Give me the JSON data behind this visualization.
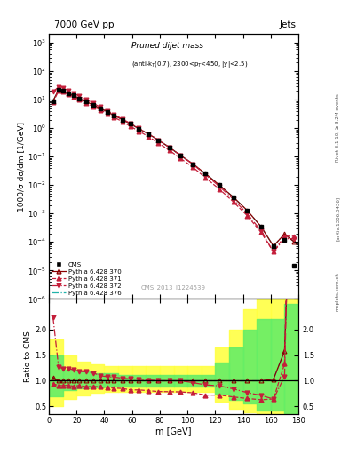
{
  "header_left": "7000 GeV pp",
  "header_right": "Jets",
  "ylabel_main": "1000/σ dσ/dm [1/GeV]",
  "ylabel_ratio": "Ratio to CMS",
  "xlabel": "m [GeV]",
  "watermark": "CMS_2013_I1224539",
  "right_label": "Rivet 3.1.10, ≥ 3.2M events",
  "arxiv": "[arXiv:1306.3436]",
  "mcplots": "mcplots.cern.ch",
  "cms_x": [
    3,
    7,
    10,
    14,
    18,
    22,
    27,
    32,
    37,
    42,
    47,
    53,
    59,
    65,
    72,
    79,
    87,
    95,
    104,
    113,
    123,
    133,
    143,
    153,
    162,
    170,
    177
  ],
  "cms_y": [
    8.5,
    22,
    21,
    17,
    14,
    11,
    8.5,
    6.5,
    5.0,
    3.8,
    2.8,
    2.0,
    1.4,
    0.95,
    0.62,
    0.38,
    0.21,
    0.11,
    0.055,
    0.025,
    0.01,
    0.0038,
    0.0013,
    0.00035,
    7e-05,
    0.00012,
    1.5e-05
  ],
  "cms_yerr_lo": [
    0.3,
    0.5,
    0.5,
    0.4,
    0.3,
    0.25,
    0.2,
    0.15,
    0.12,
    0.09,
    0.07,
    0.05,
    0.035,
    0.025,
    0.016,
    0.01,
    0.006,
    0.003,
    0.0015,
    0.0007,
    0.0003,
    0.0001,
    3.5e-05,
    1e-05,
    2e-06,
    3e-06,
    5e-07
  ],
  "cms_yerr_hi": [
    0.3,
    0.5,
    0.5,
    0.4,
    0.3,
    0.25,
    0.2,
    0.15,
    0.12,
    0.09,
    0.07,
    0.05,
    0.035,
    0.025,
    0.016,
    0.01,
    0.006,
    0.003,
    0.0015,
    0.0007,
    0.0003,
    0.0001,
    3.5e-05,
    1e-05,
    2e-06,
    3e-06,
    5e-07
  ],
  "p370_x": [
    3,
    7,
    10,
    14,
    18,
    22,
    27,
    32,
    37,
    42,
    47,
    53,
    59,
    65,
    72,
    79,
    87,
    95,
    104,
    113,
    123,
    133,
    143,
    153,
    162,
    170,
    177
  ],
  "p370_y": [
    9.0,
    22,
    21,
    17,
    14,
    11,
    8.5,
    6.5,
    5.0,
    3.8,
    2.8,
    2.0,
    1.4,
    0.95,
    0.62,
    0.38,
    0.21,
    0.11,
    0.055,
    0.025,
    0.01,
    0.0038,
    0.0013,
    0.00035,
    7.2e-05,
    0.00019,
    0.0001
  ],
  "p371_x": [
    3,
    7,
    10,
    14,
    18,
    22,
    27,
    32,
    37,
    42,
    47,
    53,
    59,
    65,
    72,
    79,
    87,
    95,
    104,
    113,
    123,
    133,
    143,
    153,
    162,
    170,
    177
  ],
  "p371_y": [
    8.0,
    20,
    19,
    15.5,
    12.5,
    10,
    7.5,
    5.8,
    4.4,
    3.3,
    2.4,
    1.7,
    1.15,
    0.78,
    0.5,
    0.3,
    0.165,
    0.086,
    0.042,
    0.018,
    0.0072,
    0.0026,
    0.00085,
    0.00022,
    4.5e-05,
    0.00016,
    0.00016
  ],
  "p372_x": [
    3,
    7,
    10,
    14,
    18,
    22,
    27,
    32,
    37,
    42,
    47,
    53,
    59,
    65,
    72,
    79,
    87,
    95,
    104,
    113,
    123,
    133,
    143,
    153,
    162,
    170,
    177
  ],
  "p372_y": [
    19,
    28,
    26,
    21,
    17,
    13,
    10,
    7.5,
    5.5,
    4.1,
    3.0,
    2.1,
    1.45,
    0.98,
    0.63,
    0.38,
    0.21,
    0.11,
    0.053,
    0.023,
    0.009,
    0.0032,
    0.001,
    0.00025,
    4.5e-05,
    0.00013,
    0.00013
  ],
  "p376_x": [
    3,
    7,
    10,
    14,
    18,
    22,
    27,
    32,
    37,
    42,
    47,
    53,
    59,
    65,
    72,
    79,
    87,
    95,
    104,
    113,
    123,
    133,
    143,
    153,
    162,
    170,
    177
  ],
  "p376_y": [
    9.0,
    22,
    21,
    17,
    14,
    11,
    8.5,
    6.5,
    5.0,
    3.8,
    2.8,
    2.0,
    1.4,
    0.95,
    0.62,
    0.38,
    0.21,
    0.11,
    0.055,
    0.025,
    0.01,
    0.0038,
    0.0013,
    0.00035,
    7.2e-05,
    0.00019,
    0.0001
  ],
  "ratio370_y": [
    1.06,
    1.0,
    1.0,
    1.0,
    1.0,
    1.0,
    1.0,
    1.0,
    1.0,
    1.0,
    1.0,
    1.0,
    1.0,
    1.0,
    1.0,
    1.0,
    1.0,
    1.0,
    1.0,
    1.0,
    1.0,
    1.0,
    1.0,
    1.0,
    1.03,
    1.58,
    6.7
  ],
  "ratio371_y": [
    0.94,
    0.91,
    0.905,
    0.912,
    0.893,
    0.909,
    0.882,
    0.892,
    0.88,
    0.868,
    0.857,
    0.85,
    0.821,
    0.821,
    0.806,
    0.789,
    0.786,
    0.782,
    0.764,
    0.72,
    0.72,
    0.684,
    0.654,
    0.629,
    0.643,
    1.33,
    10.7
  ],
  "ratio372_y": [
    2.24,
    1.27,
    1.238,
    1.235,
    1.214,
    1.182,
    1.176,
    1.154,
    1.1,
    1.079,
    1.071,
    1.05,
    1.036,
    1.032,
    1.016,
    1.0,
    1.0,
    1.0,
    0.964,
    0.92,
    0.9,
    0.842,
    0.769,
    0.714,
    0.643,
    1.083,
    8.7
  ],
  "ratio376_y": [
    1.06,
    1.0,
    1.0,
    1.0,
    1.0,
    1.0,
    1.0,
    1.0,
    1.0,
    1.0,
    1.0,
    1.0,
    1.0,
    1.0,
    1.0,
    1.0,
    1.0,
    1.0,
    1.0,
    1.0,
    1.0,
    1.0,
    1.0,
    1.0,
    1.03,
    1.58,
    6.7
  ],
  "band_edges": [
    0,
    10,
    20,
    30,
    40,
    50,
    60,
    70,
    80,
    90,
    100,
    110,
    120,
    130,
    140,
    150,
    160,
    170,
    180
  ],
  "band_green_lo": [
    0.7,
    0.82,
    0.86,
    0.87,
    0.88,
    0.88,
    0.88,
    0.88,
    0.88,
    0.88,
    0.88,
    0.88,
    0.75,
    0.62,
    0.55,
    0.42,
    0.42,
    0.35,
    0.35
  ],
  "band_green_hi": [
    1.5,
    1.22,
    1.18,
    1.15,
    1.14,
    1.12,
    1.12,
    1.12,
    1.12,
    1.12,
    1.12,
    1.12,
    1.35,
    1.65,
    2.0,
    2.2,
    2.2,
    2.5,
    2.5
  ],
  "band_yellow_lo": [
    0.5,
    0.65,
    0.72,
    0.76,
    0.78,
    0.78,
    0.78,
    0.78,
    0.78,
    0.78,
    0.78,
    0.78,
    0.6,
    0.45,
    0.38,
    0.28,
    0.28,
    0.22,
    0.22
  ],
  "band_yellow_hi": [
    1.8,
    1.5,
    1.38,
    1.32,
    1.28,
    1.28,
    1.28,
    1.28,
    1.28,
    1.28,
    1.28,
    1.28,
    1.65,
    2.0,
    2.4,
    2.8,
    2.8,
    3.0,
    3.0
  ],
  "color_370": "#8B0000",
  "color_371": "#C41E3A",
  "color_372": "#C41E3A",
  "color_376": "#20B2AA",
  "ylim_main": [
    1e-06,
    2000
  ],
  "ylim_ratio": [
    0.35,
    2.6
  ],
  "xlim": [
    0,
    180
  ]
}
